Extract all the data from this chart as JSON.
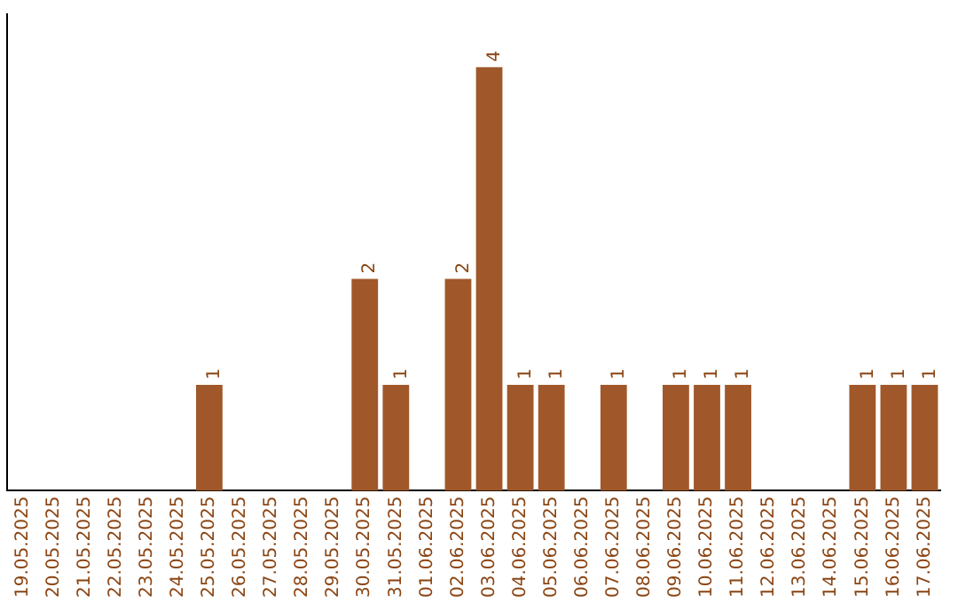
{
  "chart_data": {
    "type": "bar",
    "categories": [
      "19.05.2025",
      "20.05.2025",
      "21.05.2025",
      "22.05.2025",
      "23.05.2025",
      "24.05.2025",
      "25.05.2025",
      "26.05.2025",
      "27.05.2025",
      "28.05.2025",
      "29.05.2025",
      "30.05.2025",
      "31.05.2025",
      "01.06.2025",
      "02.06.2025",
      "03.06.2025",
      "04.06.2025",
      "05.06.2025",
      "06.06.2025",
      "07.06.2025",
      "08.06.2025",
      "09.06.2025",
      "10.06.2025",
      "11.06.2025",
      "12.06.2025",
      "13.06.2025",
      "14.06.2025",
      "15.06.2025",
      "16.06.2025",
      "17.06.2025"
    ],
    "values": [
      0,
      0,
      0,
      0,
      0,
      0,
      1,
      0,
      0,
      0,
      0,
      2,
      1,
      0,
      2,
      4,
      1,
      1,
      0,
      1,
      0,
      1,
      1,
      1,
      0,
      0,
      0,
      1,
      1,
      1
    ],
    "value_labels": [
      null,
      null,
      null,
      null,
      null,
      null,
      "1",
      null,
      null,
      null,
      null,
      "2",
      "1",
      null,
      "2",
      "4",
      "1",
      "1",
      null,
      "1",
      null,
      "1",
      "1",
      "1",
      null,
      null,
      null,
      "1",
      "1",
      "1"
    ],
    "color": "#a0582a",
    "tick_labels": "x",
    "grid": false,
    "legend": false
  }
}
